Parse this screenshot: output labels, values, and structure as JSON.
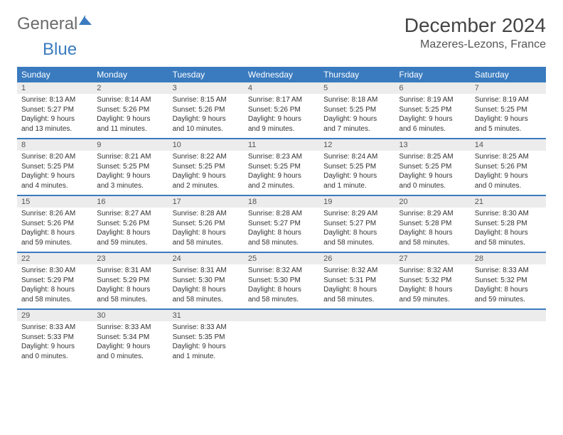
{
  "brand": {
    "part1": "General",
    "part2": "Blue"
  },
  "title": "December 2024",
  "location": "Mazeres-Lezons, France",
  "colors": {
    "accent": "#3a7bbf",
    "header_bg": "#3a7bbf",
    "daynum_bg": "#ececec",
    "text": "#333333",
    "background": "#ffffff"
  },
  "weekdays": [
    "Sunday",
    "Monday",
    "Tuesday",
    "Wednesday",
    "Thursday",
    "Friday",
    "Saturday"
  ],
  "days": [
    {
      "n": "1",
      "sunrise": "Sunrise: 8:13 AM",
      "sunset": "Sunset: 5:27 PM",
      "day1": "Daylight: 9 hours",
      "day2": "and 13 minutes."
    },
    {
      "n": "2",
      "sunrise": "Sunrise: 8:14 AM",
      "sunset": "Sunset: 5:26 PM",
      "day1": "Daylight: 9 hours",
      "day2": "and 11 minutes."
    },
    {
      "n": "3",
      "sunrise": "Sunrise: 8:15 AM",
      "sunset": "Sunset: 5:26 PM",
      "day1": "Daylight: 9 hours",
      "day2": "and 10 minutes."
    },
    {
      "n": "4",
      "sunrise": "Sunrise: 8:17 AM",
      "sunset": "Sunset: 5:26 PM",
      "day1": "Daylight: 9 hours",
      "day2": "and 9 minutes."
    },
    {
      "n": "5",
      "sunrise": "Sunrise: 8:18 AM",
      "sunset": "Sunset: 5:25 PM",
      "day1": "Daylight: 9 hours",
      "day2": "and 7 minutes."
    },
    {
      "n": "6",
      "sunrise": "Sunrise: 8:19 AM",
      "sunset": "Sunset: 5:25 PM",
      "day1": "Daylight: 9 hours",
      "day2": "and 6 minutes."
    },
    {
      "n": "7",
      "sunrise": "Sunrise: 8:19 AM",
      "sunset": "Sunset: 5:25 PM",
      "day1": "Daylight: 9 hours",
      "day2": "and 5 minutes."
    },
    {
      "n": "8",
      "sunrise": "Sunrise: 8:20 AM",
      "sunset": "Sunset: 5:25 PM",
      "day1": "Daylight: 9 hours",
      "day2": "and 4 minutes."
    },
    {
      "n": "9",
      "sunrise": "Sunrise: 8:21 AM",
      "sunset": "Sunset: 5:25 PM",
      "day1": "Daylight: 9 hours",
      "day2": "and 3 minutes."
    },
    {
      "n": "10",
      "sunrise": "Sunrise: 8:22 AM",
      "sunset": "Sunset: 5:25 PM",
      "day1": "Daylight: 9 hours",
      "day2": "and 2 minutes."
    },
    {
      "n": "11",
      "sunrise": "Sunrise: 8:23 AM",
      "sunset": "Sunset: 5:25 PM",
      "day1": "Daylight: 9 hours",
      "day2": "and 2 minutes."
    },
    {
      "n": "12",
      "sunrise": "Sunrise: 8:24 AM",
      "sunset": "Sunset: 5:25 PM",
      "day1": "Daylight: 9 hours",
      "day2": "and 1 minute."
    },
    {
      "n": "13",
      "sunrise": "Sunrise: 8:25 AM",
      "sunset": "Sunset: 5:25 PM",
      "day1": "Daylight: 9 hours",
      "day2": "and 0 minutes."
    },
    {
      "n": "14",
      "sunrise": "Sunrise: 8:25 AM",
      "sunset": "Sunset: 5:26 PM",
      "day1": "Daylight: 9 hours",
      "day2": "and 0 minutes."
    },
    {
      "n": "15",
      "sunrise": "Sunrise: 8:26 AM",
      "sunset": "Sunset: 5:26 PM",
      "day1": "Daylight: 8 hours",
      "day2": "and 59 minutes."
    },
    {
      "n": "16",
      "sunrise": "Sunrise: 8:27 AM",
      "sunset": "Sunset: 5:26 PM",
      "day1": "Daylight: 8 hours",
      "day2": "and 59 minutes."
    },
    {
      "n": "17",
      "sunrise": "Sunrise: 8:28 AM",
      "sunset": "Sunset: 5:26 PM",
      "day1": "Daylight: 8 hours",
      "day2": "and 58 minutes."
    },
    {
      "n": "18",
      "sunrise": "Sunrise: 8:28 AM",
      "sunset": "Sunset: 5:27 PM",
      "day1": "Daylight: 8 hours",
      "day2": "and 58 minutes."
    },
    {
      "n": "19",
      "sunrise": "Sunrise: 8:29 AM",
      "sunset": "Sunset: 5:27 PM",
      "day1": "Daylight: 8 hours",
      "day2": "and 58 minutes."
    },
    {
      "n": "20",
      "sunrise": "Sunrise: 8:29 AM",
      "sunset": "Sunset: 5:28 PM",
      "day1": "Daylight: 8 hours",
      "day2": "and 58 minutes."
    },
    {
      "n": "21",
      "sunrise": "Sunrise: 8:30 AM",
      "sunset": "Sunset: 5:28 PM",
      "day1": "Daylight: 8 hours",
      "day2": "and 58 minutes."
    },
    {
      "n": "22",
      "sunrise": "Sunrise: 8:30 AM",
      "sunset": "Sunset: 5:29 PM",
      "day1": "Daylight: 8 hours",
      "day2": "and 58 minutes."
    },
    {
      "n": "23",
      "sunrise": "Sunrise: 8:31 AM",
      "sunset": "Sunset: 5:29 PM",
      "day1": "Daylight: 8 hours",
      "day2": "and 58 minutes."
    },
    {
      "n": "24",
      "sunrise": "Sunrise: 8:31 AM",
      "sunset": "Sunset: 5:30 PM",
      "day1": "Daylight: 8 hours",
      "day2": "and 58 minutes."
    },
    {
      "n": "25",
      "sunrise": "Sunrise: 8:32 AM",
      "sunset": "Sunset: 5:30 PM",
      "day1": "Daylight: 8 hours",
      "day2": "and 58 minutes."
    },
    {
      "n": "26",
      "sunrise": "Sunrise: 8:32 AM",
      "sunset": "Sunset: 5:31 PM",
      "day1": "Daylight: 8 hours",
      "day2": "and 58 minutes."
    },
    {
      "n": "27",
      "sunrise": "Sunrise: 8:32 AM",
      "sunset": "Sunset: 5:32 PM",
      "day1": "Daylight: 8 hours",
      "day2": "and 59 minutes."
    },
    {
      "n": "28",
      "sunrise": "Sunrise: 8:33 AM",
      "sunset": "Sunset: 5:32 PM",
      "day1": "Daylight: 8 hours",
      "day2": "and 59 minutes."
    },
    {
      "n": "29",
      "sunrise": "Sunrise: 8:33 AM",
      "sunset": "Sunset: 5:33 PM",
      "day1": "Daylight: 9 hours",
      "day2": "and 0 minutes."
    },
    {
      "n": "30",
      "sunrise": "Sunrise: 8:33 AM",
      "sunset": "Sunset: 5:34 PM",
      "day1": "Daylight: 9 hours",
      "day2": "and 0 minutes."
    },
    {
      "n": "31",
      "sunrise": "Sunrise: 8:33 AM",
      "sunset": "Sunset: 5:35 PM",
      "day1": "Daylight: 9 hours",
      "day2": "and 1 minute."
    }
  ]
}
